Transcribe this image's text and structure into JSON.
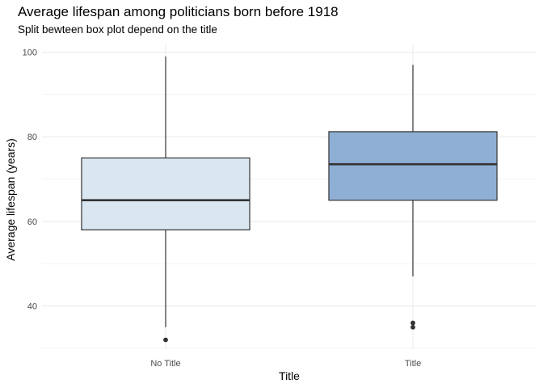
{
  "chart_data": {
    "type": "box",
    "title": "Average lifespan among politicians born before 1918",
    "subtitle": "Split bewteen box plot depend on the title",
    "xlabel": "Title",
    "ylabel": "Average lifespan (years)",
    "ylim": [
      30,
      102
    ],
    "yticks": [
      40,
      60,
      80,
      100
    ],
    "grid": true,
    "categories": [
      "No Title",
      "Title"
    ],
    "boxes": [
      {
        "category": "No Title",
        "whisker_low": 35,
        "q1": 58,
        "median": 65,
        "q3": 75,
        "whisker_high": 99,
        "outliers": [
          32
        ],
        "fill": "#dae7f1"
      },
      {
        "category": "Title",
        "whisker_low": 47,
        "q1": 65,
        "median": 73.5,
        "q3": 81.2,
        "whisker_high": 97,
        "outliers": [
          36,
          35
        ],
        "fill": "#8fafd4"
      }
    ]
  },
  "colors": {
    "box_stroke": "#333333",
    "grid": "#ebebeb",
    "point": "#333333"
  }
}
